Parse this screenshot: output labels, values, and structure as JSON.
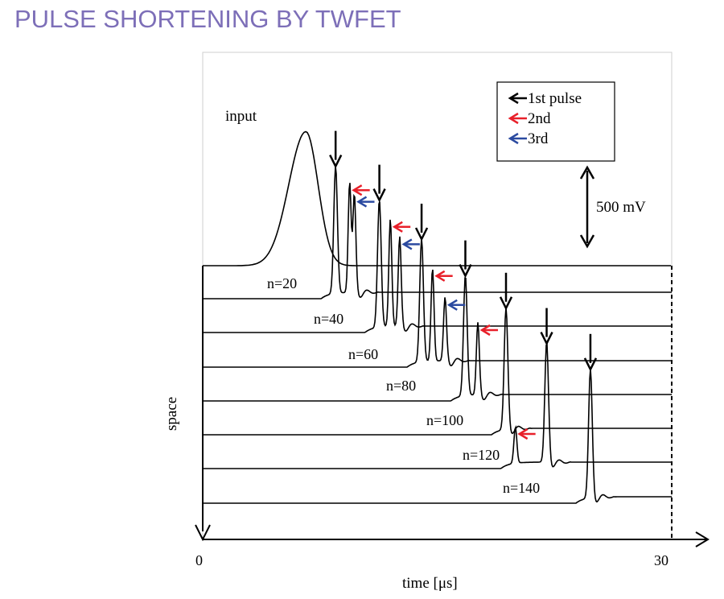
{
  "page": {
    "title": "PULSE SHORTENING BY TWFET"
  },
  "chart_data": {
    "type": "line",
    "title": "",
    "xlabel": "time [μs]",
    "ylabel": "space",
    "xlim": [
      0,
      30
    ],
    "x_ticks": [
      "0",
      "30"
    ],
    "scale_bar_label": "500 mV",
    "input_label": "input",
    "legend": {
      "placement": "top-right",
      "entries": [
        {
          "label": "1st pulse",
          "color": "#000000"
        },
        {
          "label": "2nd",
          "color": "#e8202a"
        },
        {
          "label": "3rd",
          "color": "#2b4aa0"
        }
      ]
    },
    "input_pulse": {
      "center_us": 6.6,
      "peak_mV": 925
    },
    "series": [
      {
        "name": "n=20",
        "peaks_us": [
          8.5,
          9.4,
          9.7
        ]
      },
      {
        "name": "n=40",
        "peaks_us": [
          11.3,
          12.0,
          12.6
        ]
      },
      {
        "name": "n=60",
        "peaks_us": [
          14.0,
          14.7,
          15.5
        ]
      },
      {
        "name": "n=80",
        "peaks_us": [
          16.8,
          17.6
        ]
      },
      {
        "name": "n=100",
        "peaks_us": [
          19.4
        ]
      },
      {
        "name": "n=120",
        "peaks_us": [
          22.0,
          20.0
        ]
      },
      {
        "name": "n=140",
        "peaks_us": [
          24.8
        ]
      }
    ]
  }
}
